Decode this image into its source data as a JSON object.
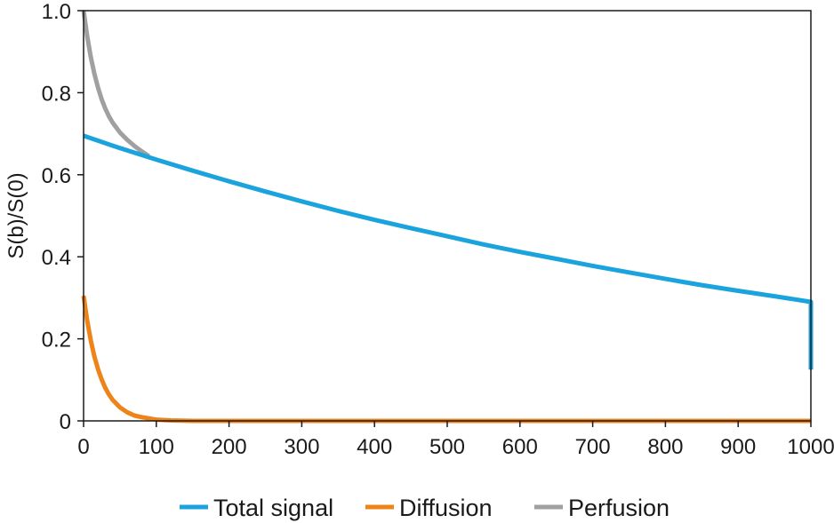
{
  "chart_data": {
    "type": "line",
    "title": "",
    "xlabel": "",
    "ylabel": "S(b)/S(0)",
    "xlim": [
      0,
      1000
    ],
    "ylim": [
      0,
      1.0
    ],
    "x_ticks": [
      0,
      100,
      200,
      300,
      400,
      500,
      600,
      700,
      800,
      900,
      1000
    ],
    "x_tick_labels": [
      "0",
      "100",
      "200",
      "300",
      "400",
      "500",
      "600",
      "700",
      "800",
      "900",
      "1000"
    ],
    "y_ticks": [
      0,
      0.2,
      0.4,
      0.6,
      0.8,
      1.0
    ],
    "y_tick_labels": [
      "0",
      "0.2",
      "0.4",
      "0.6",
      "0.8",
      "1.0"
    ],
    "grid": false,
    "legend_position": "bottom",
    "series": [
      {
        "name": "Total signal",
        "color": "#1BA3DE",
        "x": [
          0,
          50,
          100,
          150,
          200,
          250,
          300,
          350,
          400,
          450,
          500,
          550,
          600,
          650,
          700,
          750,
          800,
          850,
          900,
          950,
          1000,
          1000
        ],
        "y": [
          0.695,
          0.665,
          0.637,
          0.61,
          0.584,
          0.559,
          0.535,
          0.512,
          0.49,
          0.47,
          0.45,
          0.43,
          0.412,
          0.395,
          0.378,
          0.362,
          0.346,
          0.331,
          0.317,
          0.304,
          0.29,
          0.125
        ]
      },
      {
        "name": "Diffusion",
        "color": "#EE8418",
        "x": [
          0,
          5,
          10,
          15,
          20,
          25,
          30,
          35,
          40,
          50,
          60,
          70,
          80,
          100,
          120,
          150,
          200,
          300,
          400,
          500,
          600,
          700,
          800,
          900,
          1000
        ],
        "y": [
          0.305,
          0.244,
          0.195,
          0.156,
          0.125,
          0.1,
          0.08,
          0.064,
          0.051,
          0.033,
          0.021,
          0.013,
          0.009,
          0.003,
          0.001,
          0,
          0,
          0,
          0,
          0,
          0,
          0,
          0,
          0,
          0
        ]
      },
      {
        "name": "Perfusion",
        "color": "#A0A0A0",
        "x": [
          0,
          5,
          10,
          15,
          20,
          25,
          30,
          35,
          40,
          50,
          60,
          70,
          80,
          90
        ],
        "y": [
          1.0,
          0.937,
          0.886,
          0.845,
          0.811,
          0.783,
          0.761,
          0.742,
          0.727,
          0.703,
          0.685,
          0.67,
          0.657,
          0.645
        ]
      }
    ]
  }
}
